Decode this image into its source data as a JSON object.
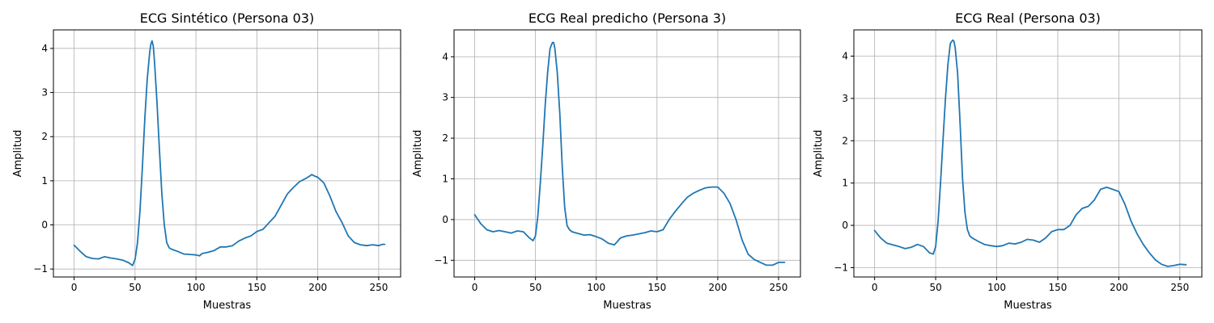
{
  "chart_data": [
    {
      "type": "line",
      "title": "ECG Sintético (Persona 03)",
      "xlabel": "Muestras",
      "ylabel": "Amplitud",
      "xlim": [
        -17,
        268
      ],
      "ylim": [
        -1.18,
        4.42
      ],
      "xticks": [
        0,
        50,
        100,
        150,
        200,
        250
      ],
      "yticks": [
        -1,
        0,
        1,
        2,
        3,
        4
      ],
      "grid": true,
      "color": "#1f77b4",
      "series": [
        {
          "x": [
            0,
            5,
            10,
            15,
            20,
            25,
            30,
            35,
            40,
            45,
            48,
            50,
            52,
            54,
            56,
            58,
            60,
            62,
            63,
            64,
            65,
            66,
            68,
            70,
            72,
            74,
            76,
            78,
            80,
            85,
            90,
            95,
            100,
            103,
            105,
            110,
            115,
            120,
            125,
            130,
            135,
            140,
            145,
            150,
            155,
            160,
            165,
            170,
            175,
            180,
            185,
            190,
            193,
            195,
            198,
            200,
            205,
            210,
            215,
            220,
            225,
            230,
            235,
            240,
            245,
            250,
            253,
            255
          ],
          "y": [
            -0.46,
            -0.6,
            -0.72,
            -0.76,
            -0.77,
            -0.72,
            -0.75,
            -0.77,
            -0.8,
            -0.86,
            -0.92,
            -0.78,
            -0.4,
            0.3,
            1.3,
            2.4,
            3.3,
            3.9,
            4.1,
            4.17,
            4.05,
            3.7,
            2.8,
            1.7,
            0.7,
            0.0,
            -0.4,
            -0.52,
            -0.55,
            -0.6,
            -0.66,
            -0.67,
            -0.68,
            -0.7,
            -0.65,
            -0.62,
            -0.58,
            -0.5,
            -0.5,
            -0.47,
            -0.37,
            -0.3,
            -0.25,
            -0.15,
            -0.1,
            0.05,
            0.2,
            0.45,
            0.7,
            0.85,
            0.98,
            1.05,
            1.1,
            1.14,
            1.1,
            1.08,
            0.95,
            0.65,
            0.3,
            0.05,
            -0.25,
            -0.4,
            -0.45,
            -0.47,
            -0.45,
            -0.47,
            -0.44,
            -0.44
          ]
        }
      ]
    },
    {
      "type": "line",
      "title": "ECG Real predicho (Persona 3)",
      "xlabel": "Muestras",
      "ylabel": "Amplitud",
      "xlim": [
        -17,
        268
      ],
      "ylim": [
        -1.41,
        4.66
      ],
      "xticks": [
        0,
        50,
        100,
        150,
        200,
        250
      ],
      "yticks": [
        -1,
        0,
        1,
        2,
        3,
        4
      ],
      "grid": true,
      "color": "#1f77b4",
      "series": [
        {
          "x": [
            0,
            5,
            10,
            15,
            20,
            25,
            30,
            35,
            40,
            45,
            48,
            50,
            52,
            54,
            56,
            58,
            60,
            62,
            64,
            65,
            66,
            68,
            70,
            72,
            74,
            76,
            78,
            80,
            85,
            90,
            95,
            100,
            105,
            110,
            115,
            120,
            125,
            130,
            135,
            140,
            145,
            150,
            155,
            160,
            165,
            170,
            175,
            180,
            185,
            190,
            195,
            200,
            205,
            210,
            215,
            220,
            225,
            230,
            235,
            240,
            245,
            250,
            255
          ],
          "y": [
            0.12,
            -0.1,
            -0.25,
            -0.3,
            -0.27,
            -0.3,
            -0.33,
            -0.28,
            -0.3,
            -0.45,
            -0.52,
            -0.4,
            0.1,
            0.9,
            1.8,
            2.8,
            3.6,
            4.2,
            4.35,
            4.35,
            4.2,
            3.6,
            2.6,
            1.3,
            0.3,
            -0.15,
            -0.25,
            -0.3,
            -0.34,
            -0.38,
            -0.37,
            -0.42,
            -0.48,
            -0.58,
            -0.62,
            -0.45,
            -0.4,
            -0.38,
            -0.35,
            -0.32,
            -0.28,
            -0.3,
            -0.25,
            0.0,
            0.2,
            0.38,
            0.55,
            0.65,
            0.72,
            0.78,
            0.8,
            0.8,
            0.65,
            0.4,
            0.0,
            -0.5,
            -0.85,
            -0.98,
            -1.05,
            -1.12,
            -1.12,
            -1.05,
            -1.05
          ]
        }
      ]
    },
    {
      "type": "line",
      "title": "ECG Real (Persona 03)",
      "xlabel": "Muestras",
      "ylabel": "Amplitud",
      "xlim": [
        -17,
        268
      ],
      "ylim": [
        -1.22,
        4.62
      ],
      "xticks": [
        0,
        50,
        100,
        150,
        200,
        250
      ],
      "yticks": [
        -1,
        0,
        1,
        2,
        3,
        4
      ],
      "grid": true,
      "color": "#1f77b4",
      "series": [
        {
          "x": [
            0,
            5,
            10,
            15,
            20,
            25,
            30,
            35,
            40,
            45,
            48,
            50,
            52,
            54,
            56,
            58,
            60,
            62,
            64,
            65,
            66,
            68,
            70,
            72,
            74,
            76,
            78,
            80,
            85,
            90,
            95,
            100,
            105,
            110,
            115,
            120,
            125,
            130,
            135,
            140,
            145,
            150,
            155,
            160,
            165,
            170,
            175,
            180,
            185,
            190,
            195,
            200,
            205,
            210,
            215,
            220,
            225,
            230,
            235,
            240,
            245,
            250,
            255
          ],
          "y": [
            -0.12,
            -0.3,
            -0.42,
            -0.46,
            -0.5,
            -0.55,
            -0.52,
            -0.45,
            -0.5,
            -0.65,
            -0.68,
            -0.5,
            0.1,
            1.0,
            2.0,
            3.0,
            3.8,
            4.3,
            4.38,
            4.35,
            4.2,
            3.6,
            2.4,
            1.1,
            0.3,
            -0.1,
            -0.25,
            -0.3,
            -0.38,
            -0.45,
            -0.48,
            -0.5,
            -0.48,
            -0.42,
            -0.44,
            -0.4,
            -0.33,
            -0.35,
            -0.4,
            -0.3,
            -0.15,
            -0.1,
            -0.1,
            0.0,
            0.25,
            0.4,
            0.45,
            0.6,
            0.85,
            0.9,
            0.85,
            0.8,
            0.5,
            0.1,
            -0.2,
            -0.45,
            -0.65,
            -0.82,
            -0.92,
            -0.97,
            -0.95,
            -0.92,
            -0.93
          ]
        }
      ]
    }
  ]
}
